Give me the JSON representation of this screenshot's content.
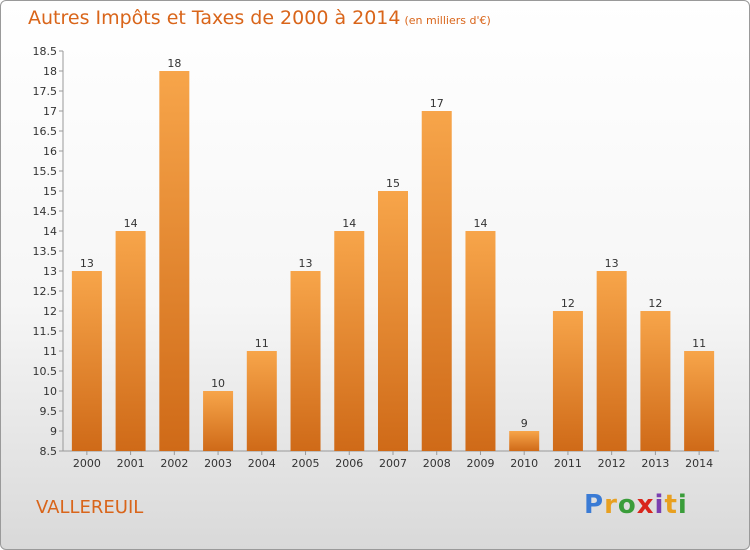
{
  "title": "Autres Impôts et Taxes de 2000 à 2014",
  "title_unit": "(en milliers d'€)",
  "commune": "VALLEREUIL",
  "logo": {
    "letters": [
      "P",
      "r",
      "o",
      "x",
      "i",
      "t",
      "i"
    ],
    "colors": [
      "#3a7bd5",
      "#e8a020",
      "#3a9d3a",
      "#d9261c",
      "#7a3fb0",
      "#e8a020",
      "#3a9d3a"
    ]
  },
  "colors": {
    "accent": "#d9651a",
    "bar_top": "#f7a54a",
    "bar_bottom": "#cf6a18"
  },
  "chart_data": {
    "type": "bar",
    "categories": [
      "2000",
      "2001",
      "2002",
      "2003",
      "2004",
      "2005",
      "2006",
      "2007",
      "2008",
      "2009",
      "2010",
      "2011",
      "2012",
      "2013",
      "2014"
    ],
    "values": [
      13,
      14,
      18,
      10,
      11,
      13,
      14,
      15,
      17,
      14,
      9,
      12,
      13,
      12,
      11
    ],
    "data_labels": [
      "13",
      "14",
      "18",
      "10",
      "11",
      "13",
      "14",
      "15",
      "17",
      "14",
      "9",
      "12",
      "13",
      "12",
      "11"
    ],
    "ylim": [
      8.5,
      18.5
    ],
    "yticks": [
      "8.5",
      "9",
      "9.5",
      "10",
      "10.5",
      "11",
      "11.5",
      "12",
      "12.5",
      "13",
      "13.5",
      "14",
      "14.5",
      "15",
      "15.5",
      "16",
      "16.5",
      "17",
      "17.5",
      "18",
      "18.5"
    ],
    "ytick_values": [
      8.5,
      9,
      9.5,
      10,
      10.5,
      11,
      11.5,
      12,
      12.5,
      13,
      13.5,
      14,
      14.5,
      15,
      15.5,
      16,
      16.5,
      17,
      17.5,
      18,
      18.5
    ],
    "grid": false
  }
}
